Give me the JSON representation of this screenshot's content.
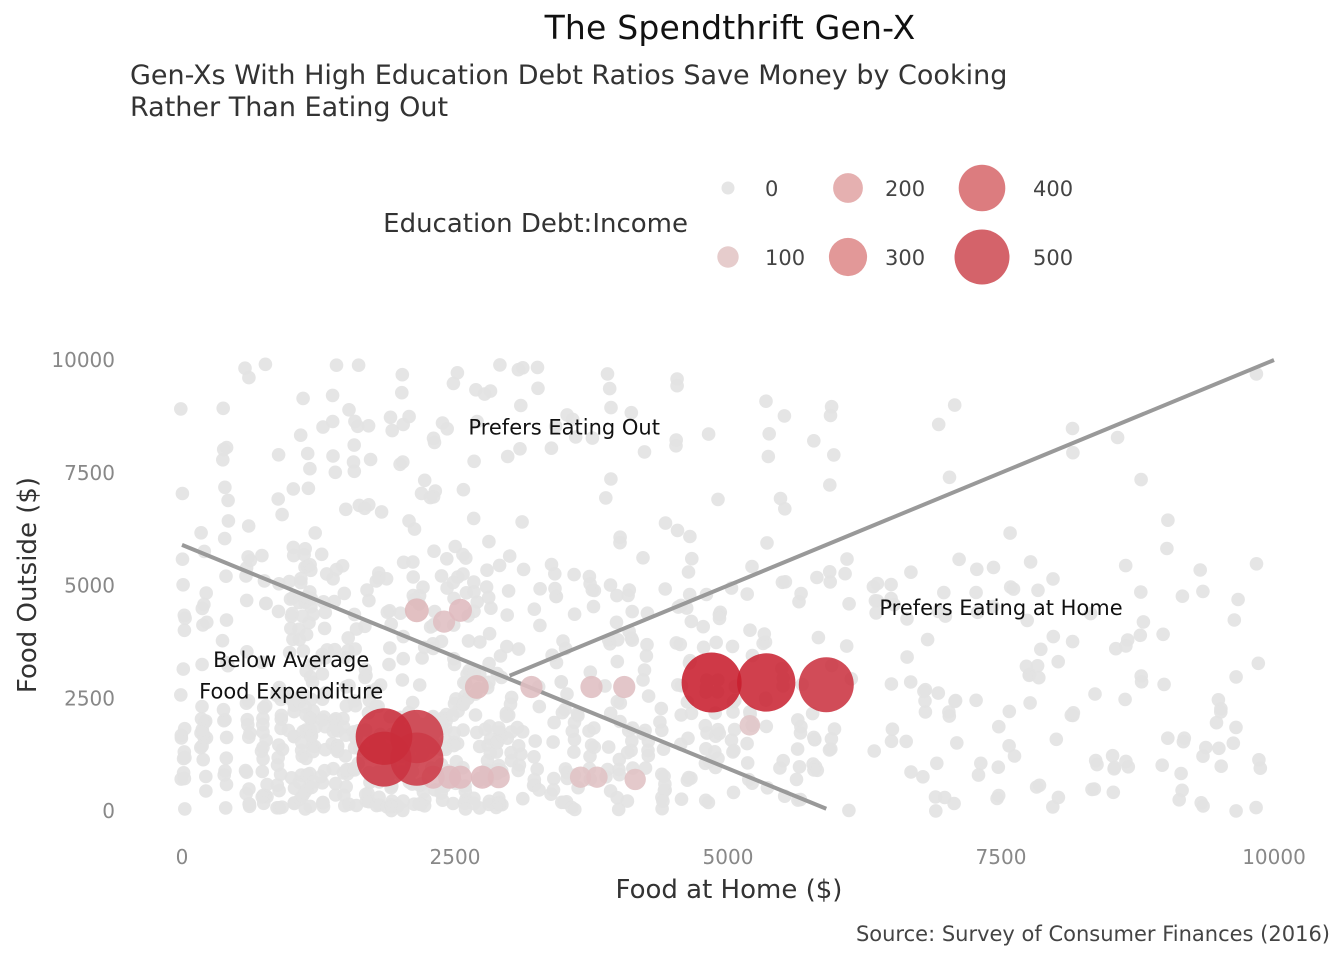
{
  "chart_data": {
    "type": "scatter",
    "title": "The Spendthrift Gen-X",
    "subtitle": "Gen-Xs With High Education Debt Ratios Save Money by Cooking Rather Than Eating Out",
    "caption": "Source: Survey of Consumer Finances (2016)",
    "xlabel": "Food at Home ($)",
    "ylabel": "Food Outside ($)",
    "xlim": [
      0,
      10000
    ],
    "ylim": [
      0,
      10000
    ],
    "xticks": [
      0,
      2500,
      5000,
      7500,
      10000
    ],
    "yticks": [
      0,
      2500,
      5000,
      7500,
      10000
    ],
    "grid": false,
    "legend": {
      "title": "Education Debt:Income",
      "position": "top",
      "entries": [
        {
          "label": "0",
          "value": 0,
          "color": "#e5e5e5"
        },
        {
          "label": "100",
          "value": 100,
          "color": "#e6cccc"
        },
        {
          "label": "200",
          "value": 200,
          "color": "#e5b0b0"
        },
        {
          "label": "300",
          "value": 300,
          "color": "#e29898"
        },
        {
          "label": "400",
          "value": 400,
          "color": "#dc7c7f"
        },
        {
          "label": "500",
          "value": 500,
          "color": "#d4636a"
        }
      ]
    },
    "annotations": [
      {
        "text": "Prefers Eating Out",
        "x": 3500,
        "y": 8500
      },
      {
        "text": "Prefers Eating at Home",
        "x": 7500,
        "y": 4500
      },
      {
        "text": "Below Average",
        "x": 1000,
        "y": 3350
      },
      {
        "text": "Food Expenditure",
        "x": 1000,
        "y": 2650
      }
    ],
    "reference_lines": [
      {
        "name": "below-average-line",
        "x": [
          0,
          5900
        ],
        "y": [
          5900,
          50
        ]
      },
      {
        "name": "home-vs-outside-line",
        "x": [
          3000,
          10000
        ],
        "y": [
          3000,
          10000
        ]
      }
    ],
    "highlight_points": [
      {
        "x": 4850,
        "y": 2850,
        "ratio": 560
      },
      {
        "x": 5350,
        "y": 2850,
        "ratio": 540
      },
      {
        "x": 5900,
        "y": 2800,
        "ratio": 500
      },
      {
        "x": 1850,
        "y": 1650,
        "ratio": 520
      },
      {
        "x": 2150,
        "y": 1650,
        "ratio": 480
      },
      {
        "x": 1850,
        "y": 1150,
        "ratio": 500
      },
      {
        "x": 2150,
        "y": 1150,
        "ratio": 480
      },
      {
        "x": 2150,
        "y": 4450,
        "ratio": 130
      },
      {
        "x": 2550,
        "y": 4450,
        "ratio": 120
      },
      {
        "x": 2400,
        "y": 4200,
        "ratio": 110
      },
      {
        "x": 2700,
        "y": 2750,
        "ratio": 130
      },
      {
        "x": 3200,
        "y": 2750,
        "ratio": 110
      },
      {
        "x": 3750,
        "y": 2750,
        "ratio": 110
      },
      {
        "x": 4050,
        "y": 2750,
        "ratio": 110
      },
      {
        "x": 4150,
        "y": 700,
        "ratio": 100
      },
      {
        "x": 2300,
        "y": 750,
        "ratio": 120
      },
      {
        "x": 2450,
        "y": 750,
        "ratio": 120
      },
      {
        "x": 2550,
        "y": 750,
        "ratio": 120
      },
      {
        "x": 2750,
        "y": 750,
        "ratio": 120
      },
      {
        "x": 2900,
        "y": 750,
        "ratio": 110
      },
      {
        "x": 3650,
        "y": 750,
        "ratio": 100
      },
      {
        "x": 3800,
        "y": 750,
        "ratio": 100
      },
      {
        "x": 5200,
        "y": 1900,
        "ratio": 90
      }
    ],
    "background_points_note": "approx. 1000 grey points (ratio 0)"
  }
}
